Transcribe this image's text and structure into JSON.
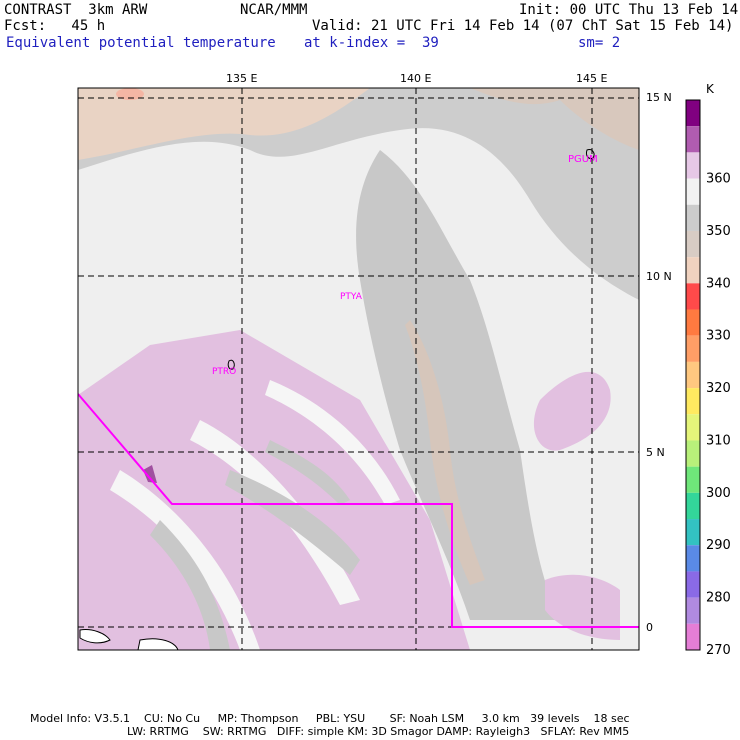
{
  "header": {
    "line1_left": "CONTRAST  3km ARW",
    "line1_mid": "NCAR/MMM",
    "line1_right": "Init: 00 UTC Thu 13 Feb 14",
    "line2_left": "Fcst:   45 h",
    "line2_right": "Valid: 21 UTC Fri 14 Feb 14 (07 ChT Sat 15 Feb 14)",
    "line3_left": "Equivalent potential temperature",
    "line3_mid": "at k-index =  39",
    "line3_right": "sm= 2"
  },
  "map": {
    "lon_labels": [
      "135 E",
      "140 E",
      "145 E"
    ],
    "lat_labels": [
      "15 N",
      "10 N",
      "5 N",
      "0"
    ],
    "stations": [
      "PGUM",
      "PTYA",
      "PTRO"
    ],
    "colors": {
      "ocean_base": "#e2c0e0",
      "land": "#ffffff",
      "band_350": "#cfcfcf",
      "band_340": "#e8d0c0",
      "band_345": "#d6c6bb",
      "band_360": "#efefef",
      "boundary": "#ff00ff",
      "station": "#ff00ff"
    }
  },
  "colorbar": {
    "unit": "K",
    "labels": [
      "360",
      "350",
      "340",
      "330",
      "320",
      "310",
      "300",
      "290",
      "280",
      "270"
    ],
    "colors": [
      "#800080",
      "#b05cb0",
      "#e6c8e6",
      "#f2f2f2",
      "#cccccc",
      "#d8ccc4",
      "#f0d2bf",
      "#ff4a4a",
      "#ff7a40",
      "#ff9e66",
      "#ffc880",
      "#ffea60",
      "#e5f57a",
      "#b8f07a",
      "#6fe67a",
      "#33d69a",
      "#33c2c2",
      "#5a8ae6",
      "#8a6ae6",
      "#b08ae0",
      "#e57ed6"
    ]
  },
  "footer": {
    "line1": "Model Info: V3.5.1    CU: No Cu     MP: Thompson     PBL: YSU       SF: Noah LSM     3.0 km   39 levels    18 sec",
    "line2": "LW: RRTMG    SW: RRTMG   DIFF: simple KM: 3D Smagor DAMP: Rayleigh3   SFLAY: Rev MM5"
  }
}
